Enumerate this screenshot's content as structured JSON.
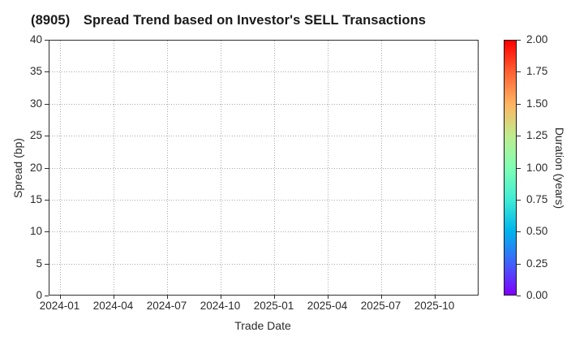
{
  "chart_data": {
    "type": "scatter",
    "title": "(8905)　Spread Trend based on Investor's SELL Transactions",
    "xlabel": "Trade Date",
    "ylabel": "Spread (bp)",
    "x_tick_labels": [
      "2024-01",
      "2024-04",
      "2024-07",
      "2024-10",
      "2025-01",
      "2025-04",
      "2025-07",
      "2025-10"
    ],
    "ylim": [
      0,
      40
    ],
    "y_ticks": [
      0,
      5,
      10,
      15,
      20,
      25,
      30,
      35,
      40
    ],
    "grid": true,
    "grid_style": "dotted",
    "series": [],
    "colorbar": {
      "label": "Duration (years)",
      "range": [
        0.0,
        2.0
      ],
      "ticks": [
        "0.00",
        "0.25",
        "0.50",
        "0.75",
        "1.00",
        "1.25",
        "1.50",
        "1.75",
        "2.00"
      ],
      "colormap": "rainbow",
      "gradient": [
        {
          "pos": 0,
          "color": "#8000ff"
        },
        {
          "pos": 12.5,
          "color": "#4062fa"
        },
        {
          "pos": 25,
          "color": "#00b4ec"
        },
        {
          "pos": 37.5,
          "color": "#40ecd4"
        },
        {
          "pos": 50,
          "color": "#80ffb4"
        },
        {
          "pos": 62.5,
          "color": "#bfec8e"
        },
        {
          "pos": 75,
          "color": "#ffb462"
        },
        {
          "pos": 87.5,
          "color": "#ff6232"
        },
        {
          "pos": 100,
          "color": "#ff0000"
        }
      ]
    },
    "colors": {
      "background": "#ffffff",
      "spine": "#2f2f2f",
      "gridline": "#a9a9a9",
      "text": "#2b2b2b",
      "title_text": "#1a1a1a"
    }
  }
}
